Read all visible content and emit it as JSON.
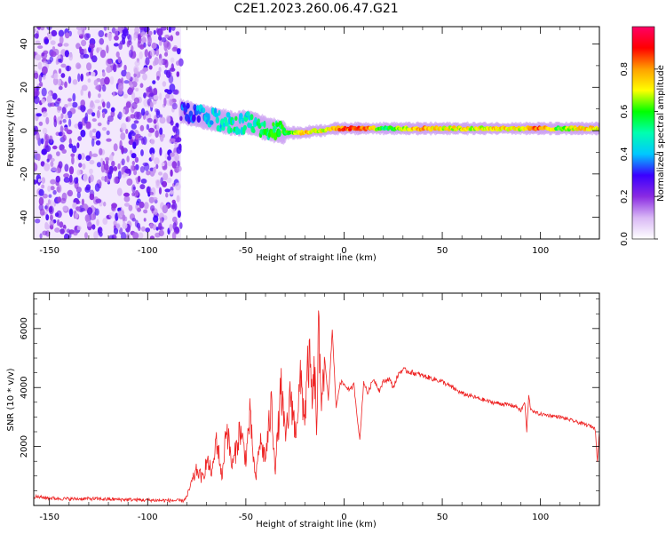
{
  "title": "C2E1.2023.260.06.47.G21",
  "colorbar": {
    "label": "Normalized spectral amplitude",
    "ticks": [
      "0.0",
      "0.2",
      "0.4",
      "0.6",
      "0.8"
    ],
    "tick_values": [
      0.0,
      0.2,
      0.4,
      0.6,
      0.8
    ],
    "range": [
      0,
      1
    ],
    "colors": [
      "#ffffff",
      "#d9b8f5",
      "#8a2be2",
      "#3a00ff",
      "#00c8ff",
      "#00ffb0",
      "#00ff00",
      "#ffff00",
      "#ffa000",
      "#ff0000",
      "#ff0066"
    ]
  },
  "chart_data": [
    {
      "type": "heatmap",
      "xlabel": "Height of straight line (km)",
      "ylabel": "Frequency (Hz)",
      "xlim": [
        -158,
        130
      ],
      "ylim": [
        -50,
        48
      ],
      "x_ticks": [
        -150,
        -100,
        -50,
        0,
        50,
        100
      ],
      "x_tick_labels": [
        "-150",
        "-100",
        "-50",
        "0",
        "50",
        "100"
      ],
      "y_ticks": [
        -40,
        -20,
        0,
        20,
        40
      ],
      "y_tick_labels": [
        "-40",
        "-20",
        "0",
        "20",
        "40"
      ],
      "noise_region_x": [
        -158,
        -83
      ],
      "trace": {
        "x": [
          -83,
          -75,
          -70,
          -65,
          -60,
          -55,
          -50,
          -45,
          -40,
          -35,
          -30,
          -25,
          -20,
          -15,
          -10,
          -5,
          0,
          10,
          20,
          30,
          40,
          50,
          60,
          70,
          80,
          90,
          100,
          110,
          120,
          130
        ],
        "freq": [
          9,
          7,
          6,
          5,
          4,
          3,
          4,
          3,
          1,
          0,
          -1,
          -1,
          -1,
          0,
          0,
          1,
          1,
          1,
          1,
          1,
          1,
          1,
          1,
          1,
          1,
          1,
          1,
          1,
          1,
          1
        ],
        "amplitude": [
          0.3,
          0.35,
          0.4,
          0.45,
          0.45,
          0.5,
          0.45,
          0.5,
          0.55,
          0.55,
          0.6,
          0.65,
          0.75,
          0.7,
          0.7,
          0.75,
          0.85,
          0.85,
          0.55,
          0.7,
          0.8,
          0.7,
          0.7,
          0.7,
          0.75,
          0.7,
          0.85,
          0.6,
          0.75,
          0.7
        ]
      }
    },
    {
      "type": "line",
      "xlabel": "Height of straight line (km)",
      "ylabel": "SNR (10 * v/v)",
      "xlim": [
        -158,
        130
      ],
      "ylim": [
        0,
        7200
      ],
      "x_ticks": [
        -150,
        -100,
        -50,
        0,
        50,
        100
      ],
      "x_tick_labels": [
        "-150",
        "-100",
        "-50",
        "0",
        "50",
        "100"
      ],
      "y_ticks": [
        2000,
        4000,
        6000
      ],
      "y_tick_labels": [
        "2000",
        "4000",
        "6000"
      ],
      "series": [
        {
          "color": "#ee2222",
          "x": [
            -158,
            -150,
            -140,
            -130,
            -120,
            -110,
            -100,
            -90,
            -82,
            -80,
            -78,
            -75,
            -72,
            -70,
            -67,
            -65,
            -62,
            -60,
            -57,
            -55,
            -53,
            -50,
            -48,
            -45,
            -43,
            -40,
            -37,
            -35,
            -32,
            -30,
            -27,
            -25,
            -22,
            -20,
            -18,
            -16,
            -15,
            -14,
            -13,
            -12,
            -10,
            -8,
            -6,
            -4,
            -2,
            0,
            3,
            5,
            8,
            10,
            12,
            15,
            18,
            20,
            23,
            25,
            28,
            30,
            35,
            40,
            45,
            50,
            55,
            60,
            65,
            70,
            75,
            80,
            85,
            88,
            90,
            92,
            93,
            94,
            95,
            97,
            100,
            105,
            110,
            115,
            120,
            125,
            127,
            128,
            129,
            130
          ],
          "y": [
            300,
            250,
            220,
            230,
            210,
            200,
            180,
            170,
            160,
            300,
            700,
            1200,
            900,
            1500,
            1100,
            2300,
            900,
            2800,
            1300,
            1900,
            2600,
            1600,
            3000,
            800,
            2200,
            1600,
            3400,
            1300,
            4000,
            2200,
            3800,
            2500,
            4200,
            3000,
            5000,
            3500,
            4500,
            2500,
            5800,
            3700,
            5000,
            3600,
            5900,
            3300,
            4200,
            4100,
            3900,
            4100,
            2200,
            4200,
            3800,
            4300,
            3900,
            4200,
            4300,
            4000,
            4500,
            4600,
            4500,
            4400,
            4300,
            4200,
            4000,
            3800,
            3700,
            3600,
            3500,
            3450,
            3400,
            3350,
            3200,
            3500,
            2500,
            3700,
            3300,
            3150,
            3100,
            3050,
            3000,
            2900,
            2800,
            2700,
            2650,
            2550,
            1500,
            2500
          ]
        }
      ]
    }
  ]
}
